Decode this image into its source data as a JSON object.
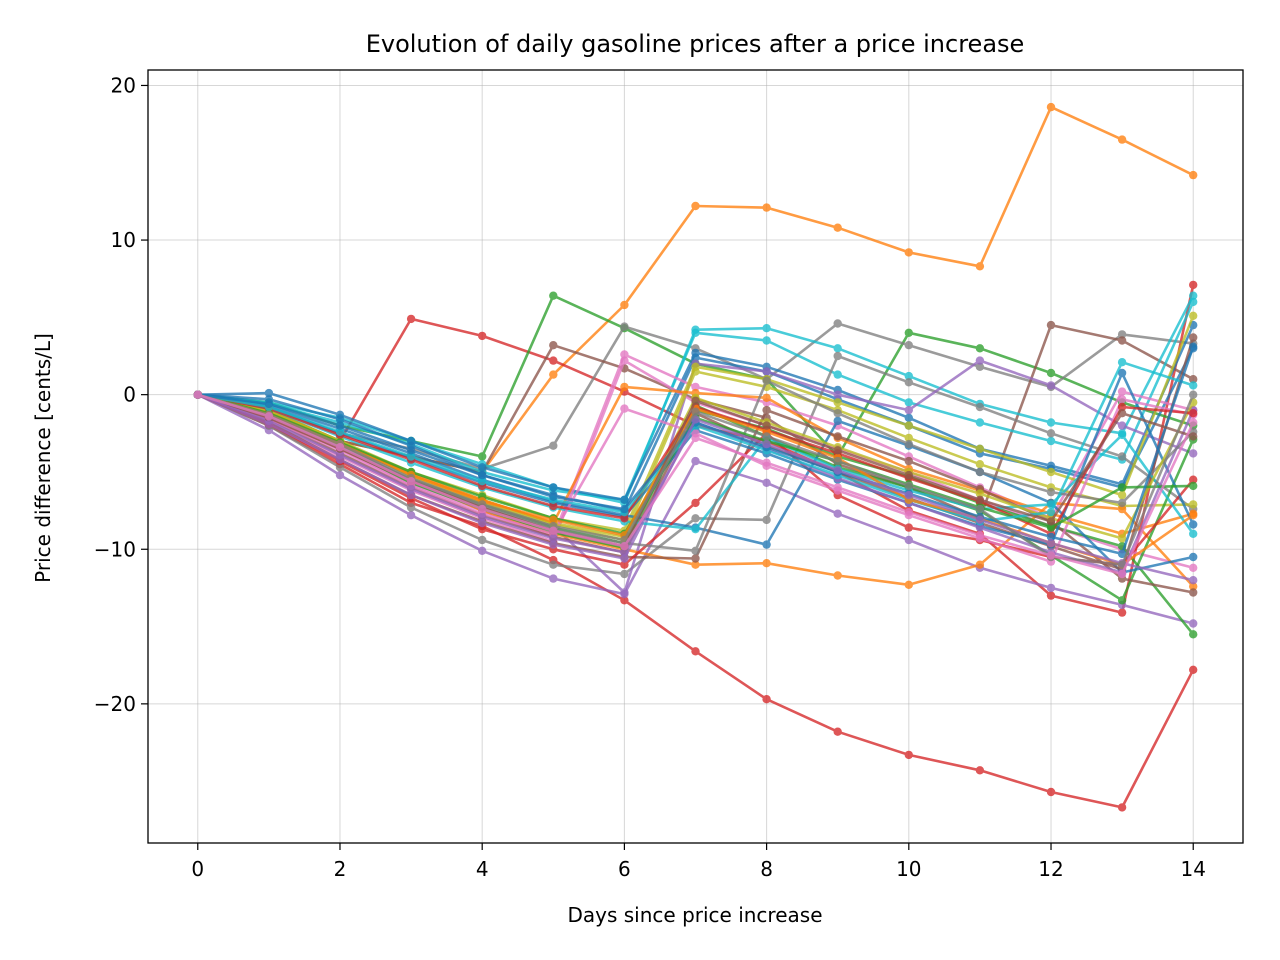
{
  "chart_data": {
    "type": "line",
    "title": "Evolution of daily gasoline prices after a price increase",
    "xlabel": "Days since price increase",
    "ylabel": "Price difference [cents/L]",
    "xlim": [
      -0.7,
      14.7
    ],
    "ylim": [
      -29,
      21
    ],
    "xticks": [
      0,
      2,
      4,
      6,
      8,
      10,
      12,
      14
    ],
    "yticks": [
      -20,
      -10,
      0,
      10,
      20
    ],
    "ytick_labels": [
      "−20",
      "−10",
      "0",
      "10",
      "20"
    ],
    "grid": true,
    "legend": "none",
    "x": [
      0,
      1,
      2,
      3,
      4,
      5,
      6,
      7,
      8,
      9,
      10,
      11,
      12,
      13,
      14
    ],
    "series": [
      {
        "color": "#ff7f0e",
        "values": [
          0,
          -1,
          -3,
          -4,
          -5,
          1.3,
          5.8,
          12.2,
          12.1,
          10.8,
          9.2,
          8.3,
          18.6,
          16.5,
          14.2
        ]
      },
      {
        "color": "#d62728",
        "values": [
          0,
          -2,
          -4.5,
          -7,
          -8.5,
          -10.7,
          -13.3,
          -16.6,
          -19.7,
          -21.8,
          -23.3,
          -24.3,
          -25.7,
          -26.7,
          -17.8
        ]
      },
      {
        "color": "#d62728",
        "values": [
          0,
          -1.5,
          -3,
          4.9,
          3.8,
          2.2,
          0.2,
          -2,
          -3,
          -5,
          -7.5,
          -9,
          -13,
          -14.1,
          7.1
        ]
      },
      {
        "color": "#2ca02c",
        "values": [
          0,
          -0.5,
          -2,
          -3,
          -4,
          6.4,
          4.3,
          2,
          1,
          -4,
          4,
          3,
          1.4,
          -0.5,
          -2
        ]
      },
      {
        "color": "#7f7f7f",
        "values": [
          0,
          -0.8,
          -2.5,
          -3.5,
          -4.8,
          -3.3,
          4.4,
          3,
          1,
          4.6,
          3.2,
          1.8,
          0.5,
          3.9,
          3.3
        ]
      },
      {
        "color": "#8c564b",
        "values": [
          0,
          -1,
          -3,
          -4,
          -5,
          3.2,
          1.7,
          -0.3,
          -1.5,
          -4.5,
          -6,
          -8,
          4.5,
          3.5,
          1
        ]
      },
      {
        "color": "#17becf",
        "values": [
          0,
          -0.5,
          -1.5,
          -3,
          -4.5,
          -6,
          -7,
          4.2,
          4.3,
          3,
          1.2,
          -0.6,
          -1.8,
          -2.5,
          6.4
        ]
      },
      {
        "color": "#17becf",
        "values": [
          0,
          -0.6,
          -1.8,
          -3.2,
          -5,
          -6.2,
          -6.8,
          4,
          3.5,
          1.3,
          -0.5,
          -1.8,
          -3,
          -4.2,
          6
        ]
      },
      {
        "color": "#1f77b4",
        "values": [
          0,
          0.1,
          -1.3,
          -3,
          -4.7,
          -6,
          -6.8,
          2.7,
          1.8,
          0.3,
          -1.5,
          -3.5,
          -4.6,
          -5.8,
          4.5
        ]
      },
      {
        "color": "#1f77b4",
        "values": [
          0,
          -0.3,
          -1.6,
          -3.3,
          -5.2,
          -6.5,
          -7.5,
          2.4,
          1.5,
          -0.3,
          -2,
          -3.8,
          -4.8,
          -6,
          3
        ]
      },
      {
        "color": "#9467bd",
        "values": [
          0,
          -2.3,
          -5.2,
          -7.8,
          -10.1,
          -11.9,
          -12.9,
          -4.3,
          -5.7,
          -7.7,
          -9.4,
          -11.2,
          -12.5,
          -13.6,
          -14.8
        ]
      },
      {
        "color": "#7f7f7f",
        "values": [
          0,
          -2,
          -4.7,
          -7.3,
          -9.4,
          -11,
          -11.6,
          -8,
          -8.1,
          2.5,
          0.8,
          -0.8,
          -2.5,
          -4,
          -7.4
        ]
      },
      {
        "color": "#9467bd",
        "values": [
          0,
          -1.5,
          -3.5,
          -5.5,
          -7,
          -8.5,
          -12.8,
          2,
          1.5,
          0,
          -1,
          2.2,
          0.6,
          -2,
          -3.8
        ]
      },
      {
        "color": "#e377c2",
        "values": [
          0,
          -1.5,
          -3.5,
          -5.8,
          -7.5,
          -9.2,
          2.6,
          0.5,
          -0.5,
          -2,
          -4,
          -6,
          -8,
          0.2,
          -1
        ]
      },
      {
        "color": "#e377c2",
        "values": [
          0,
          -1.8,
          -4,
          -6.2,
          -8,
          -9.5,
          2.2,
          -0.5,
          -2,
          -3.5,
          -5,
          -6.8,
          -8.5,
          -10,
          -11.2
        ]
      },
      {
        "color": "#bcbd22",
        "values": [
          0,
          -1,
          -3,
          -5,
          -6.5,
          -8,
          -8.8,
          1.8,
          1,
          -0.5,
          -2,
          -3.5,
          -5,
          -6.5,
          5.1
        ]
      },
      {
        "color": "#bcbd22",
        "values": [
          0,
          -1.2,
          -3.2,
          -5.2,
          -6.8,
          -8.3,
          -9.2,
          1.5,
          0.5,
          -1,
          -2.8,
          -4.5,
          -6,
          -7.2,
          -7.1
        ]
      },
      {
        "color": "#ff7f0e",
        "values": [
          0,
          -1.5,
          -3.5,
          -5.5,
          -7.5,
          -9,
          -10,
          -11,
          -10.9,
          -11.7,
          -12.3,
          -11,
          -7,
          -7.4,
          -12.4
        ]
      },
      {
        "color": "#ff7f0e",
        "values": [
          0,
          -1.1,
          -3.1,
          -5.1,
          -6.8,
          -8.3,
          0.5,
          0.1,
          -0.2,
          -2.8,
          -4.8,
          -6.2,
          -7.7,
          -9,
          -7.7
        ]
      },
      {
        "color": "#2ca02c",
        "values": [
          0,
          -1.3,
          -3.3,
          -5.5,
          -7.1,
          -8.6,
          -9.6,
          -1,
          -2.2,
          -4,
          -5.3,
          -7,
          -8.5,
          -9.8,
          -15.5
        ]
      },
      {
        "color": "#2ca02c",
        "values": [
          0,
          -1.4,
          -3.4,
          -5.7,
          -7.4,
          -8.9,
          -9.9,
          -0.7,
          -2.7,
          -4.7,
          -6,
          -7.5,
          -10.4,
          -13.3,
          -2.9
        ]
      },
      {
        "color": "#1f77b4",
        "values": [
          0,
          -0.7,
          -2.2,
          -3.8,
          -5.5,
          -6.9,
          -7.8,
          -8.6,
          -9.7,
          -1.7,
          -3.3,
          -5,
          -7,
          -11.5,
          -10.5
        ]
      },
      {
        "color": "#8c564b",
        "values": [
          0,
          -1.8,
          -4.2,
          -6.5,
          -8.2,
          -9.6,
          -10.5,
          -10.6,
          -1,
          -2.7,
          -4.3,
          -6.1,
          -8.2,
          -11.9,
          -12.8
        ]
      },
      {
        "color": "#8c564b",
        "values": [
          0,
          -1.6,
          -3.8,
          -6,
          -7.8,
          -9.2,
          -10.2,
          -1.2,
          -3.3,
          -5,
          -6.7,
          -8.3,
          -9.8,
          -11.3,
          3.7
        ]
      },
      {
        "color": "#d62728",
        "values": [
          0,
          -1.9,
          -4.3,
          -6.7,
          -8.7,
          -10,
          -11,
          -7,
          -2.5,
          -6.5,
          -8.6,
          -9.4,
          -10.5,
          -11,
          -5.5
        ]
      },
      {
        "color": "#17becf",
        "values": [
          0,
          -0.9,
          -2.7,
          -4.4,
          -6,
          -7.3,
          -8.2,
          -8.7,
          -2.8,
          -4.8,
          -6.2,
          -7.4,
          -7.1,
          -2.6,
          -9
        ]
      },
      {
        "color": "#1f77b4",
        "values": [
          0,
          -0.8,
          -2.5,
          -4.1,
          -5.7,
          -7,
          -7.9,
          -2.3,
          -3.8,
          -5.5,
          -7,
          -8.5,
          -9.7,
          1.4,
          -8.4
        ]
      },
      {
        "color": "#e377c2",
        "values": [
          0,
          -1.6,
          -3.6,
          -5.9,
          -7.7,
          -9,
          -0.9,
          -2.5,
          -4.6,
          -6.2,
          -7.8,
          -9.3,
          -10.8,
          -0.3,
          -1.3
        ]
      },
      {
        "color": "#9467bd",
        "values": [
          0,
          -1.7,
          -3.9,
          -6.1,
          -7.9,
          -9.3,
          -10.2,
          -1.8,
          -3.5,
          -5.4,
          -7,
          -8.6,
          -10.2,
          -11.5,
          -1
        ]
      },
      {
        "color": "#7f7f7f",
        "values": [
          0,
          -1.4,
          -3.3,
          -5.5,
          -7.2,
          -8.7,
          -9.6,
          -10.1,
          0.9,
          -1.2,
          -3.2,
          -5,
          -6.3,
          -7,
          -2.4
        ]
      },
      {
        "color": "#bcbd22",
        "values": [
          0,
          -1.1,
          -3,
          -5.3,
          -7,
          -8.4,
          -9.4,
          -0.2,
          -1.8,
          -3.4,
          -5,
          -6.4,
          -8,
          -9.3,
          -0.5
        ]
      },
      {
        "color": "#d62728",
        "values": [
          0,
          -0.9,
          -2.6,
          -4.2,
          -5.9,
          -7.2,
          -8,
          -0.8,
          -2.3,
          -3.8,
          -5.4,
          -6.9,
          -9,
          -0.8,
          -1.2
        ]
      },
      {
        "color": "#2ca02c",
        "values": [
          0,
          -1.2,
          -3.1,
          -5,
          -6.6,
          -8,
          -9,
          -1.5,
          -3,
          -4.3,
          -5.8,
          -7.3,
          -8.6,
          -6,
          -5.9
        ]
      },
      {
        "color": "#17becf",
        "values": [
          0,
          -0.8,
          -2.4,
          -4,
          -5.6,
          -6.8,
          -7.6,
          -2,
          -3.6,
          -5.2,
          -6.8,
          -8.2,
          -7.6,
          2.1,
          0.6
        ]
      },
      {
        "color": "#ff7f0e",
        "values": [
          0,
          -1.3,
          -3.2,
          -5.2,
          -6.9,
          -8.1,
          -9.1,
          -0.9,
          -2.4,
          -4.1,
          -6.8,
          -8,
          -9.6,
          -11,
          -7.8
        ]
      },
      {
        "color": "#1f77b4",
        "values": [
          0,
          -0.6,
          -2,
          -3.6,
          -5.2,
          -6.6,
          -7.4,
          -1.8,
          -3.4,
          -5,
          -6.4,
          -7.9,
          -9.2,
          -10.3,
          3.1
        ]
      },
      {
        "color": "#8c564b",
        "values": [
          0,
          -1.5,
          -3.5,
          -5.6,
          -7.3,
          -8.8,
          -9.8,
          -0.4,
          -2,
          -3.6,
          -5.2,
          -6.8,
          -8.2,
          -1.2,
          -2.7
        ]
      },
      {
        "color": "#9467bd",
        "values": [
          0,
          -1.9,
          -4.2,
          -6.5,
          -8.3,
          -9.7,
          -10.6,
          -1.6,
          -3.2,
          -4.9,
          -6.5,
          -8.1,
          -9.6,
          -10.9,
          -12
        ]
      },
      {
        "color": "#7f7f7f",
        "values": [
          0,
          -1.3,
          -3.2,
          -5.4,
          -7.1,
          -8.5,
          -9.4,
          -1.1,
          -2.7,
          -4.3,
          -5.9,
          -7.4,
          -10.5,
          -11,
          0
        ]
      },
      {
        "color": "#e377c2",
        "values": [
          0,
          -1.4,
          -3.4,
          -5.6,
          -7.4,
          -8.8,
          -9.8,
          -2.8,
          -4.4,
          -6,
          -7.6,
          -9.1,
          -10.4,
          -11.6,
          -1.8
        ]
      }
    ]
  }
}
